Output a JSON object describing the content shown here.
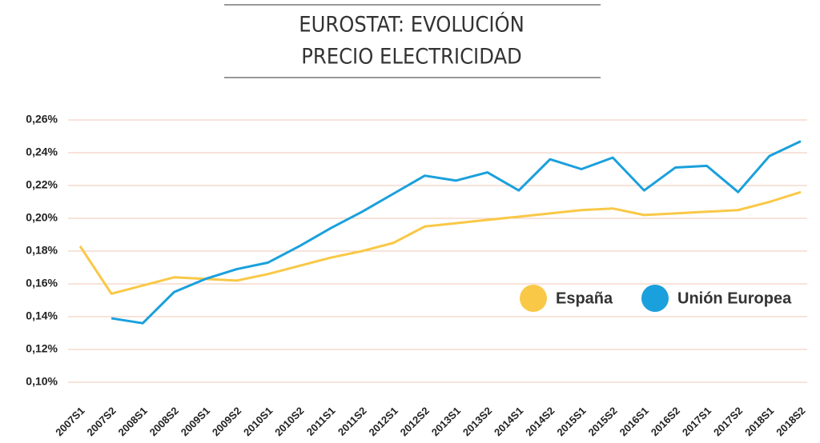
{
  "chart_data": {
    "type": "line",
    "title": [
      "EUROSTAT: EVOLUCIÓN",
      "PRECIO ELECTRICIDAD"
    ],
    "categories": [
      "2007S1",
      "2007S2",
      "2008S1",
      "2008S2",
      "2009S1",
      "2009S2",
      "2010S1",
      "2010S2",
      "2011S1",
      "2011S2",
      "2012S1",
      "2012S2",
      "2013S1",
      "2013S2",
      "2014S1",
      "2014S2",
      "2015S1",
      "2015S2",
      "2016S1",
      "2016S2",
      "2017S1",
      "2017S2",
      "2018S1",
      "2018S2"
    ],
    "series": [
      {
        "name": "España",
        "color": "#f9c846",
        "values": [
          0.183,
          0.154,
          0.159,
          0.164,
          0.163,
          0.162,
          0.166,
          0.171,
          0.176,
          0.18,
          0.185,
          0.195,
          0.197,
          0.199,
          0.201,
          0.203,
          0.205,
          0.206,
          0.202,
          0.203,
          0.204,
          0.205,
          0.21,
          0.216
        ]
      },
      {
        "name": "Unión Europea",
        "color": "#1aa0dc",
        "values": [
          null,
          0.139,
          0.136,
          0.155,
          0.163,
          0.169,
          0.173,
          0.183,
          0.194,
          0.204,
          0.215,
          0.226,
          0.223,
          0.228,
          0.217,
          0.236,
          0.23,
          0.237,
          0.217,
          0.231,
          0.232,
          0.216,
          0.238,
          0.247
        ]
      }
    ],
    "ylim": [
      0.1,
      0.26
    ],
    "yticks": [
      {
        "value": 0.1,
        "label": "0,10%"
      },
      {
        "value": 0.12,
        "label": "0,12%"
      },
      {
        "value": 0.14,
        "label": "0,14%"
      },
      {
        "value": 0.16,
        "label": "0,16%"
      },
      {
        "value": 0.18,
        "label": "0,18%"
      },
      {
        "value": 0.2,
        "label": "0,20%"
      },
      {
        "value": 0.22,
        "label": "0,22%"
      },
      {
        "value": 0.24,
        "label": "0,24%"
      },
      {
        "value": 0.26,
        "label": "0,26%"
      }
    ],
    "grid": true,
    "grid_color": "#f2c7b5",
    "legend": "right"
  }
}
